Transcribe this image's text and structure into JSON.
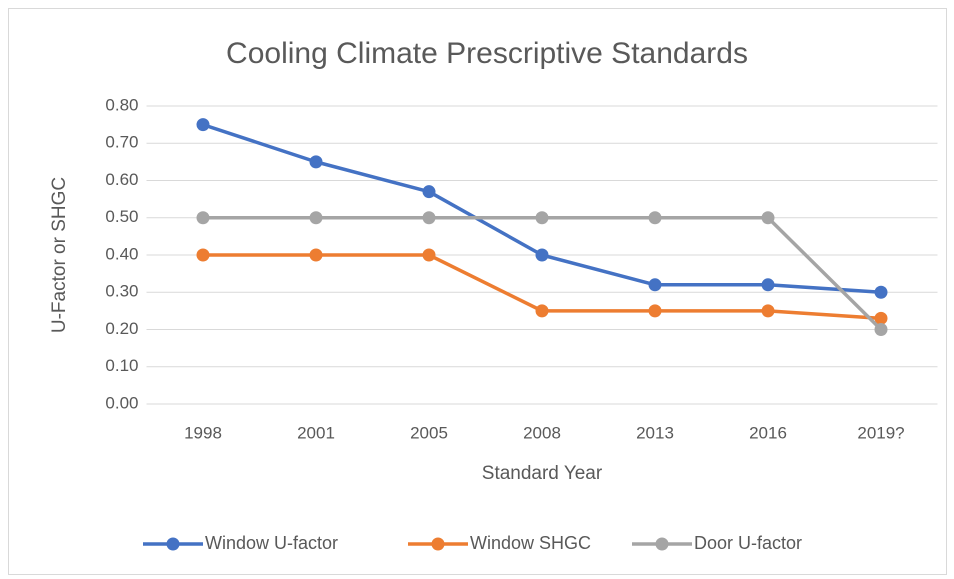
{
  "chart_data": {
    "type": "line",
    "title": "Cooling Climate Prescriptive Standards",
    "x_label": "Standard Year",
    "y_label": "U-Factor or SHGC",
    "categories": [
      "1998",
      "2001",
      "2005",
      "2008",
      "2013",
      "2016",
      "2019?"
    ],
    "series": [
      {
        "name": "Window U-factor",
        "color": "#4472c4",
        "values": [
          0.75,
          0.65,
          0.57,
          0.4,
          0.32,
          0.32,
          0.3
        ]
      },
      {
        "name": "Window SHGC",
        "color": "#ed7d31",
        "values": [
          0.4,
          0.4,
          0.4,
          0.25,
          0.25,
          0.25,
          0.23
        ]
      },
      {
        "name": "Door U-factor",
        "color": "#a5a5a5",
        "values": [
          0.5,
          0.5,
          0.5,
          0.5,
          0.5,
          0.5,
          0.2
        ]
      }
    ],
    "ylim": [
      0,
      0.8
    ],
    "yticks": [
      {
        "value": 0,
        "label": "0.00"
      },
      {
        "value": 0.1,
        "label": "0.10"
      },
      {
        "value": 0.2,
        "label": "0.20"
      },
      {
        "value": 0.3,
        "label": "0.30"
      },
      {
        "value": 0.4,
        "label": "0.40"
      },
      {
        "value": 0.5,
        "label": "0.50"
      },
      {
        "value": 0.6,
        "label": "0.60"
      },
      {
        "value": 0.7,
        "label": "0.70"
      },
      {
        "value": 0.8,
        "label": "0.80"
      }
    ],
    "grid": true,
    "legend": "bottom"
  }
}
